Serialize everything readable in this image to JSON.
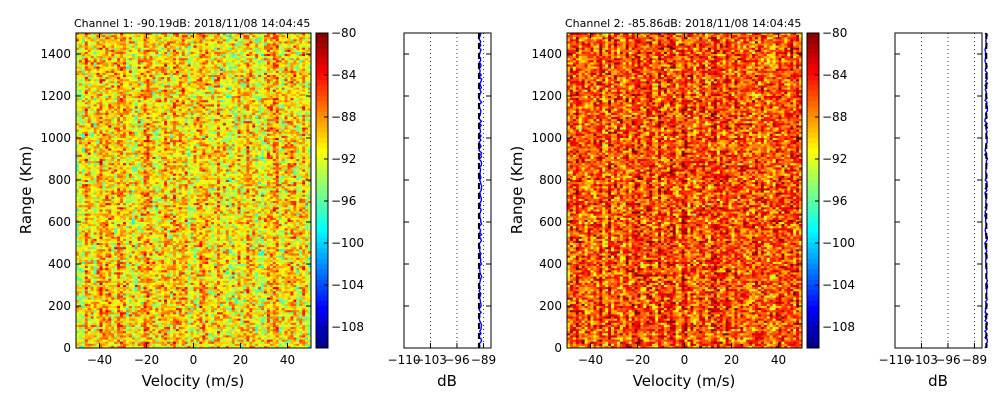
{
  "chart_data": [
    {
      "type": "heatmap",
      "title": "Channel 1: -90.19dB: 2018/11/08 14:04:45",
      "xlabel": "Velocity (m/s)",
      "ylabel": "Range (Km)",
      "xlim": [
        -50,
        50
      ],
      "ylim": [
        0,
        1500
      ],
      "x_ticks": [
        -40,
        -20,
        0,
        20,
        40
      ],
      "y_ticks": [
        0,
        200,
        400,
        600,
        800,
        1000,
        1200,
        1400
      ],
      "grid": false,
      "colormap": "jet",
      "colorbar": {
        "range": [
          -110,
          -80
        ],
        "ticks": [
          -80,
          -84,
          -88,
          -92,
          -96,
          -100,
          -104,
          -108
        ]
      },
      "mean_level_dB": -90.19,
      "seed": 11
    },
    {
      "type": "line",
      "xlabel": "dB",
      "xlim": [
        -110,
        -87
      ],
      "ylim": [
        0,
        1500
      ],
      "x_ticks": [
        -110,
        -103,
        -96,
        -89
      ],
      "x_tick_labels": [
        "−110",
        "−103",
        "−96",
        "−89"
      ],
      "grid": "vertical dotted",
      "series": [
        {
          "style": "blue solid",
          "level_dB": -89.8
        },
        {
          "style": "black dashed",
          "level_dB": -90.19
        }
      ],
      "seed": 21
    },
    {
      "type": "heatmap",
      "title": "Channel 2: -85.86dB: 2018/11/08 14:04:45",
      "xlabel": "Velocity (m/s)",
      "ylabel": "Range (Km)",
      "xlim": [
        -50,
        50
      ],
      "ylim": [
        0,
        1500
      ],
      "x_ticks": [
        -40,
        -20,
        0,
        20,
        40
      ],
      "y_ticks": [
        0,
        200,
        400,
        600,
        800,
        1000,
        1200,
        1400
      ],
      "grid": false,
      "colormap": "jet",
      "colorbar": {
        "range": [
          -110,
          -80
        ],
        "ticks": [
          -80,
          -84,
          -88,
          -92,
          -96,
          -100,
          -104,
          -108
        ]
      },
      "mean_level_dB": -85.86,
      "seed": 37
    },
    {
      "type": "line",
      "xlabel": "dB",
      "xlim": [
        -110,
        -87
      ],
      "ylim": [
        0,
        1500
      ],
      "x_ticks": [
        -110,
        -103,
        -96,
        -89
      ],
      "x_tick_labels": [
        "−110",
        "−103",
        "−96",
        "−89"
      ],
      "grid": "vertical dotted",
      "series": [
        {
          "style": "blue solid",
          "level_dB": -85.9
        },
        {
          "style": "black dashed",
          "level_dB": -85.86
        }
      ],
      "seed": 53
    }
  ]
}
